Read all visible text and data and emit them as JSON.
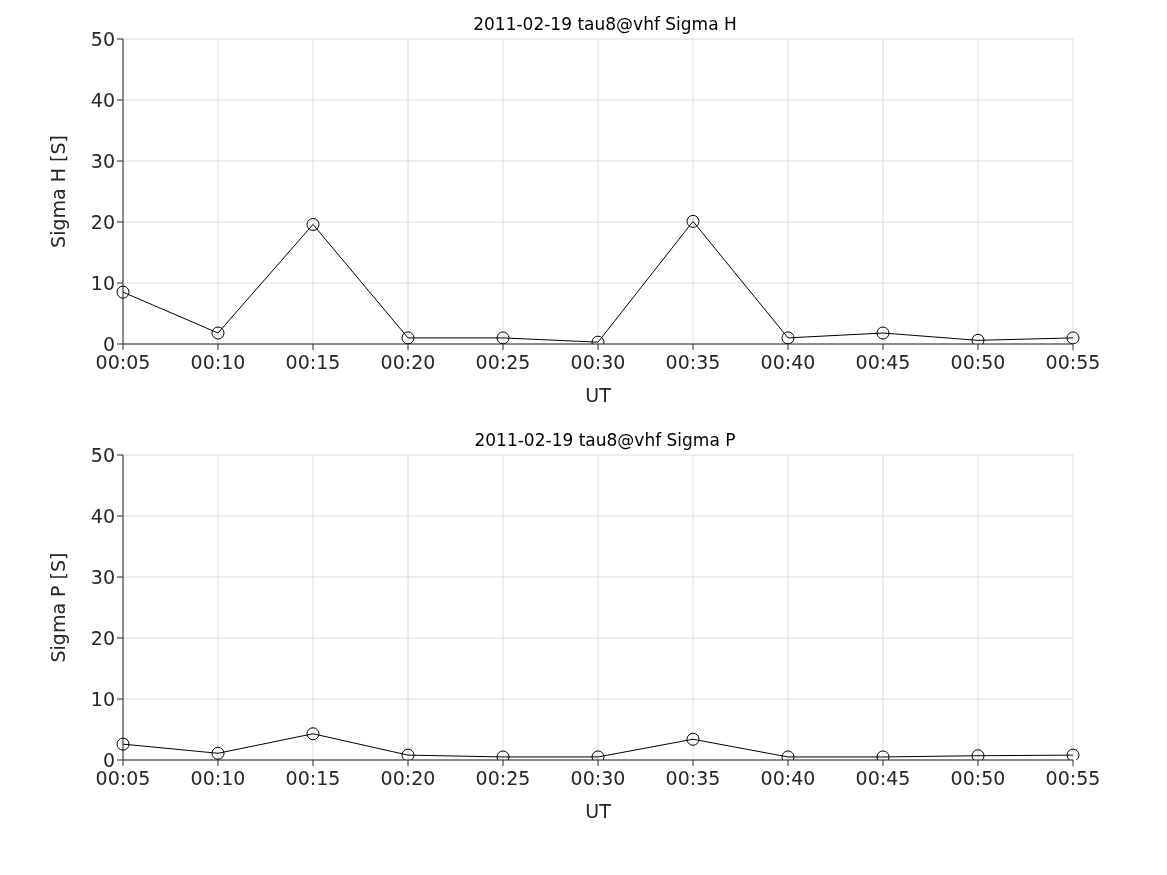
{
  "chart_data": [
    {
      "type": "line",
      "title": "2011-02-19  tau8@vhf Sigma H",
      "xlabel": "UT",
      "ylabel": "Sigma H [S]",
      "categories": [
        "00:05",
        "00:10",
        "00:15",
        "00:20",
        "00:25",
        "00:30",
        "00:35",
        "00:40",
        "00:45",
        "00:50",
        "00:55"
      ],
      "series": [
        {
          "color": "#000000",
          "values": [
            8.5,
            1.8,
            19.6,
            1.0,
            1.0,
            0.3,
            20.1,
            1.0,
            1.8,
            0.6,
            1.0
          ]
        }
      ],
      "ylim": [
        0,
        50
      ],
      "yticks": [
        0,
        10,
        20,
        30,
        40,
        50
      ],
      "grid": true,
      "marker": "circle",
      "line_style": "solid"
    },
    {
      "type": "line",
      "title": "2011-02-19  tau8@vhf Sigma P",
      "xlabel": "UT",
      "ylabel": "Sigma P [S]",
      "categories": [
        "00:05",
        "00:10",
        "00:15",
        "00:20",
        "00:25",
        "00:30",
        "00:35",
        "00:40",
        "00:45",
        "00:50",
        "00:55"
      ],
      "series": [
        {
          "color": "#000000",
          "values": [
            2.6,
            1.1,
            4.3,
            0.8,
            0.5,
            0.5,
            3.4,
            0.5,
            0.5,
            0.7,
            0.8
          ]
        }
      ],
      "ylim": [
        0,
        50
      ],
      "yticks": [
        0,
        10,
        20,
        30,
        40,
        50
      ],
      "grid": true,
      "marker": "circle",
      "line_style": "solid"
    }
  ]
}
